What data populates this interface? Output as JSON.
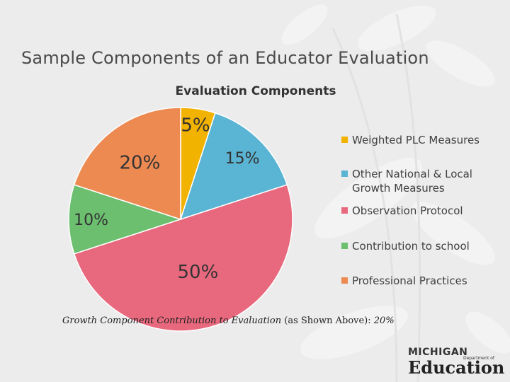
{
  "slide": {
    "title": "Sample Components of an Educator Evaluation"
  },
  "chart_data": {
    "type": "pie",
    "title": "Evaluation Components",
    "legend_position": "right",
    "slices": [
      {
        "label": "Weighted PLC Measures",
        "value": 5,
        "display": "5%",
        "color": "#f2b200"
      },
      {
        "label": "Other National & Local Growth Measures",
        "value": 15,
        "display": "15%",
        "color": "#5ab4d3"
      },
      {
        "label": "Observation Protocol",
        "value": 50,
        "display": "50%",
        "color": "#e8697e"
      },
      {
        "label": "Contribution to school",
        "value": 10,
        "display": "10%",
        "color": "#6bbf6f"
      },
      {
        "label": "Professional Practices",
        "value": 20,
        "display": "20%",
        "color": "#ec8a52"
      }
    ]
  },
  "caption": {
    "italic_part": "Growth Component Contribution to Evaluation",
    "rest": " (as Shown Above):  ",
    "value": "20%"
  },
  "logo": {
    "line1": "MICHIGAN",
    "line2": "Department of",
    "line3": "Education"
  }
}
